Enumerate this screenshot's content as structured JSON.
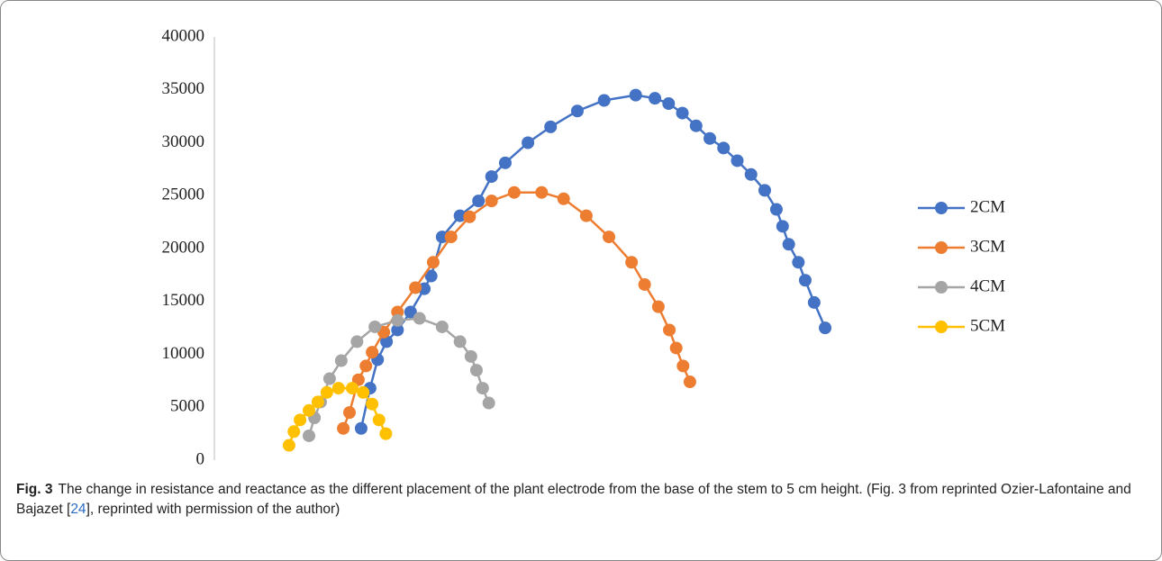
{
  "chart_data": {
    "type": "scatter-line",
    "xlim": [
      0,
      100000
    ],
    "xticks": [
      0,
      20000,
      40000,
      60000,
      80000,
      100000
    ],
    "ylim": [
      0,
      40000
    ],
    "yticks": [
      0,
      5000,
      10000,
      15000,
      20000,
      25000,
      30000,
      35000,
      40000
    ],
    "grid": false,
    "legend": "right",
    "series": [
      {
        "name": "2CM",
        "color": "#4472c4",
        "x": [
          20200,
          21500,
          22600,
          23900,
          25500,
          27400,
          29400,
          30400,
          32000,
          34600,
          37300,
          39200,
          41200,
          44500,
          47800,
          51700,
          55600,
          60200,
          63000,
          65000,
          67000,
          69000,
          71000,
          73000,
          75000,
          77000,
          79000,
          80700,
          81600,
          82500,
          83900,
          84900,
          86200,
          87800
        ],
        "values": [
          3000,
          6800,
          9500,
          11200,
          12300,
          14000,
          16200,
          17400,
          21100,
          23100,
          24500,
          26800,
          28100,
          30000,
          31500,
          33000,
          34000,
          34500,
          34200,
          33700,
          32800,
          31600,
          30400,
          29500,
          28300,
          27000,
          25500,
          23700,
          22100,
          20400,
          18700,
          17000,
          14900,
          12500
        ]
      },
      {
        "name": "3CM",
        "color": "#ed7d31",
        "x": [
          17600,
          18500,
          19800,
          20900,
          21800,
          23500,
          25500,
          28100,
          30700,
          33300,
          36000,
          39200,
          42500,
          46500,
          49700,
          53000,
          56300,
          59600,
          61500,
          63500,
          65100,
          66100,
          67100,
          68100
        ],
        "values": [
          3000,
          4500,
          7600,
          8900,
          10200,
          12100,
          14000,
          16300,
          18700,
          21100,
          23000,
          24500,
          25300,
          25300,
          24700,
          23100,
          21100,
          18700,
          16600,
          14500,
          12300,
          10600,
          8900,
          7400
        ]
      },
      {
        "name": "4CM",
        "color": "#a5a5a5",
        "x": [
          12600,
          13400,
          14300,
          15600,
          17300,
          19600,
          22200,
          25500,
          28700,
          32000,
          34600,
          36200,
          37000,
          37900,
          38800
        ],
        "values": [
          2300,
          4000,
          5500,
          7700,
          9400,
          11200,
          12600,
          13200,
          13400,
          12600,
          11200,
          9800,
          8500,
          6800,
          5400
        ]
      },
      {
        "name": "5CM",
        "color": "#ffc000",
        "x": [
          9700,
          10400,
          11300,
          12600,
          13900,
          15200,
          16900,
          18900,
          20500,
          21800,
          22800,
          23800
        ],
        "values": [
          1400,
          2700,
          3800,
          4700,
          5500,
          6400,
          6800,
          6800,
          6400,
          5300,
          3800,
          2500
        ]
      }
    ]
  },
  "caption": {
    "label": "Fig. 3",
    "text_before": "The change in resistance and reactance as the different placement of the plant electrode from the base of the stem to 5 cm height. (Fig. 3 from reprinted Ozier-Lafontaine and Bajazet [",
    "ref": "24",
    "text_after": "], reprinted with permission of the author)"
  }
}
